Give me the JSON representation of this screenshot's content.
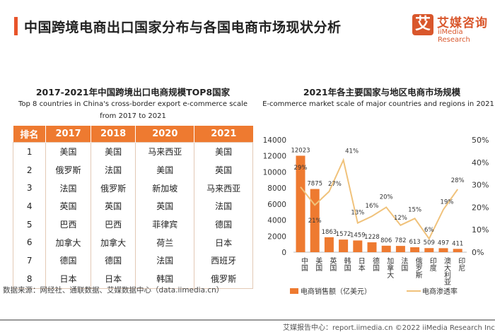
{
  "title": "中国跨境电商出口国家分布与各国电商市场现状分析",
  "logo": {
    "mark": "艾",
    "cn": "艾媒咨询",
    "en": "iiMedia Research"
  },
  "table": {
    "title": "2017-2021年中国跨境出口电商规模TOP8国家",
    "subtitle1": "Top 8 countries in China's cross-border export e-commerce scale",
    "subtitle2": "from 2017 to 2021",
    "headers": [
      "排名",
      "2017",
      "2018",
      "2020",
      "2021"
    ],
    "rows": [
      [
        "1",
        "美国",
        "美国",
        "马来西亚",
        "美国"
      ],
      [
        "2",
        "俄罗斯",
        "法国",
        "美国",
        "英国"
      ],
      [
        "3",
        "法国",
        "俄罗斯",
        "新加坡",
        "马来西亚"
      ],
      [
        "4",
        "英国",
        "英国",
        "英国",
        "法国"
      ],
      [
        "5",
        "巴西",
        "巴西",
        "菲律宾",
        "德国"
      ],
      [
        "6",
        "加拿大",
        "加拿大",
        "荷兰",
        "日本"
      ],
      [
        "7",
        "德国",
        "德国",
        "法国",
        "西班牙"
      ],
      [
        "8",
        "日本",
        "日本",
        "韩国",
        "俄罗斯"
      ]
    ]
  },
  "source": "数据来源：网经社、通联数据、艾媒数据中心（data.iimedia.cn）",
  "footer": "艾媒报告中心：report.iimedia.cn   ©2022  iiMedia Research  Inc",
  "chart_data": {
    "type": "bar+line",
    "title": "2021年各主要国家与地区电商市场规模",
    "subtitle": "E-commerce market scale of major countries and regions in 2021",
    "categories": [
      "中国",
      "美国",
      "英国",
      "韩国",
      "日本",
      "德国",
      "加拿大",
      "法国",
      "俄罗斯",
      "印度",
      "澳大利亚",
      "印尼"
    ],
    "series": [
      {
        "name": "电商销售额（亿美元）",
        "type": "bar",
        "axis": "left",
        "color": "#ee7a30",
        "values": [
          12023,
          7875,
          1863,
          1572,
          1459,
          1228,
          806,
          782,
          613,
          509,
          497,
          411
        ]
      },
      {
        "name": "电商渗透率",
        "type": "line",
        "axis": "right",
        "color": "#f0c27b",
        "values": [
          29,
          21,
          27,
          41,
          13,
          16,
          20,
          12,
          15,
          6,
          19,
          28
        ]
      }
    ],
    "yleft": {
      "range": [
        0,
        14000
      ],
      "ticks": [
        "0",
        "2000",
        "4000",
        "6000",
        "8000",
        "10000",
        "12000",
        "14000"
      ]
    },
    "yright": {
      "range": [
        0,
        50
      ],
      "ticks": [
        "0%",
        "10%",
        "20%",
        "30%",
        "40%",
        "50%"
      ]
    },
    "legend": "bottom"
  }
}
